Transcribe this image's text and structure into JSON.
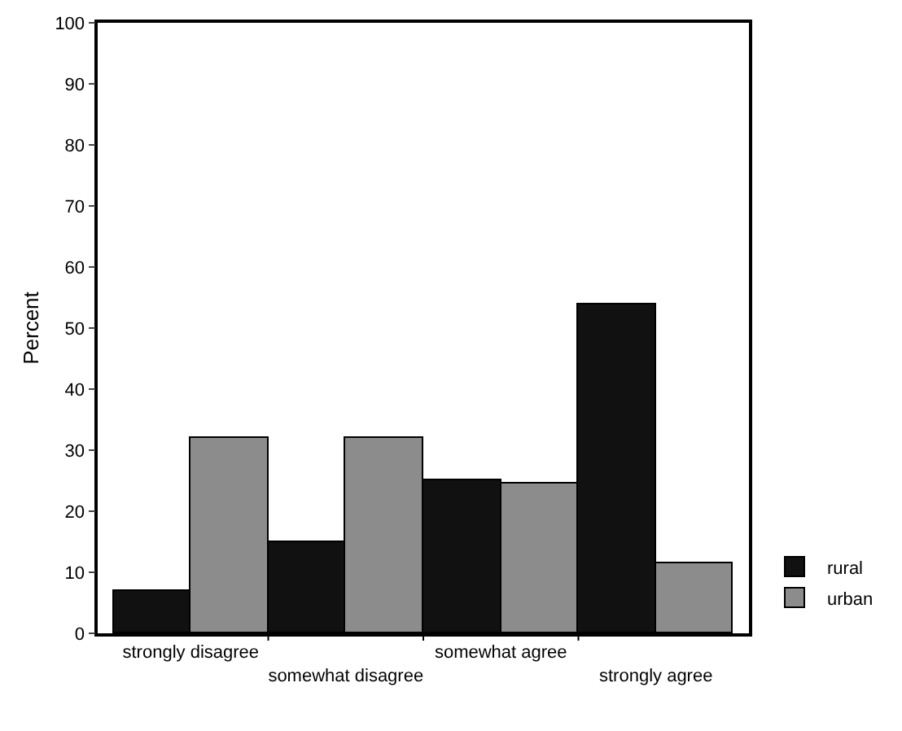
{
  "chart_data": {
    "type": "bar",
    "ylabel": "Percent",
    "categories": [
      "strongly disagree",
      "somewhat disagree",
      "somewhat agree",
      "strongly agree"
    ],
    "series": [
      {
        "name": "rural",
        "color": "#111111",
        "values": [
          7,
          15,
          25,
          54
        ]
      },
      {
        "name": "urban",
        "color": "#8c8c8c",
        "values": [
          32,
          32,
          24.5,
          11.5
        ]
      }
    ],
    "ylim": [
      0,
      100
    ],
    "yticks": [
      0,
      10,
      20,
      30,
      40,
      50,
      60,
      70,
      80,
      90,
      100
    ],
    "grid": false,
    "legend": "bottom right"
  }
}
